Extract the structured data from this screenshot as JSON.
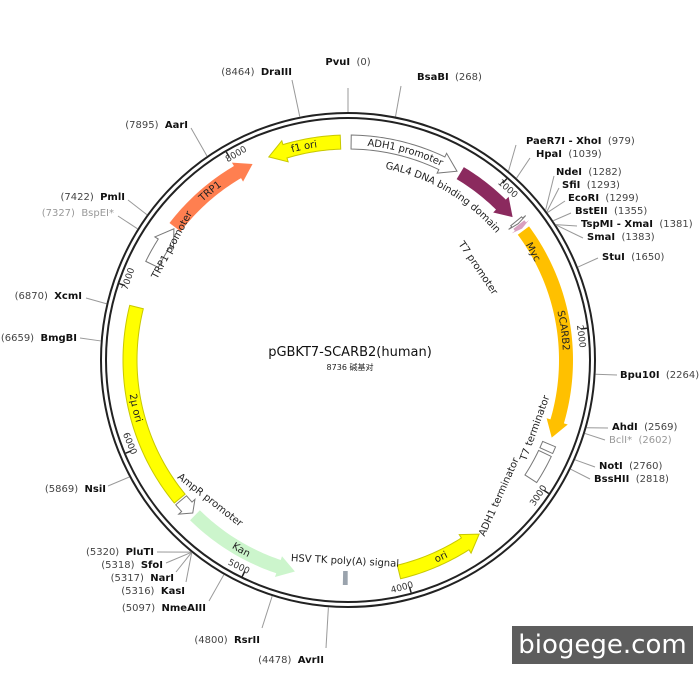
{
  "plasmid": {
    "name": "pGBKT7-SCARB2(human)",
    "length_label": "8736 碱基对",
    "length": 8736
  },
  "ticks": [
    1000,
    2000,
    3000,
    4000,
    5000,
    6000,
    7000,
    8000
  ],
  "features": [
    {
      "label": "ADH1 promoter",
      "start": 20,
      "end": 728,
      "direction": "forward",
      "color": "#ffffff",
      "outline": true
    },
    {
      "label": "GAL4 DNA binding domain",
      "start": 752,
      "end": 1190,
      "direction": "forward",
      "color": "#8b2a5e"
    },
    {
      "label": "T7 promoter",
      "start": 1225,
      "end": 1245,
      "direction": "forward",
      "color": "#ffffff",
      "outline": true
    },
    {
      "label": "Myc",
      "start": 1252,
      "end": 1285,
      "direction": "forward",
      "color": "#d9a0c0"
    },
    {
      "label": "SCARB2",
      "start": 1300,
      "end": 2690,
      "direction": "forward",
      "color": "#ffc000"
    },
    {
      "label": "T7 terminator",
      "start": 2735,
      "end": 2780,
      "direction": "none",
      "color": "#ffffff",
      "outline": true
    },
    {
      "label": "ADH1 terminator",
      "start": 2800,
      "end": 2985,
      "direction": "none",
      "color": "#ffffff",
      "outline": true
    },
    {
      "label": "ori",
      "start": 3470,
      "end": 4040,
      "direction": "reverse",
      "color": "#ffff00"
    },
    {
      "label": "HSV TK poly(A) signal",
      "start": 4370,
      "end": 4400,
      "direction": "none",
      "color": "#9aa3ad"
    },
    {
      "label": "Kan",
      "start": 4710,
      "end": 5450,
      "direction": "reverse",
      "color": "#ccf5cc"
    },
    {
      "label": "AmpR promoter",
      "start": 5470,
      "end": 5580,
      "direction": "reverse",
      "color": "#ffffff",
      "outline": true
    },
    {
      "label": "2μ ori",
      "start": 5594,
      "end": 6893,
      "direction": "none",
      "color": "#ffff00"
    },
    {
      "label": "TRP1 promoter",
      "start": 7183,
      "end": 7450,
      "direction": "forward",
      "color": "#ffffff",
      "outline": true
    },
    {
      "label": "TRP1",
      "start": 7462,
      "end": 8106,
      "direction": "forward",
      "color": "#ff7f50"
    },
    {
      "label": "f1 ori",
      "start": 8219,
      "end": 8688,
      "direction": "reverse",
      "color": "#ffff00"
    }
  ],
  "sites": [
    {
      "name": "PvuI",
      "position": "(0)"
    },
    {
      "name": "BsaBI",
      "position": "(268)"
    },
    {
      "name": "PaeR7I - XhoI",
      "position": "(979)"
    },
    {
      "name": "HpaI",
      "position": "(1039)"
    },
    {
      "name": "NdeI",
      "position": "(1282)"
    },
    {
      "name": "SfiI",
      "position": "(1293)"
    },
    {
      "name": "EcoRI",
      "position": "(1299)"
    },
    {
      "name": "BstEII",
      "position": "(1355)"
    },
    {
      "name": "TspMI - XmaI",
      "position": "(1381)"
    },
    {
      "name": "SmaI",
      "position": "(1383)"
    },
    {
      "name": "StuI",
      "position": "(1650)"
    },
    {
      "name": "Bpu10I",
      "position": "(2264)"
    },
    {
      "name": "AhdI",
      "position": "(2569)"
    },
    {
      "name": "BclI*",
      "position": "(2602)",
      "grey": true
    },
    {
      "name": "NotI",
      "position": "(2760)"
    },
    {
      "name": "BssHII",
      "position": "(2818)"
    },
    {
      "name": "AvrII",
      "position": "(4478)"
    },
    {
      "name": "RsrII",
      "position": "(4800)"
    },
    {
      "name": "NmeAIII",
      "position": "(5097)"
    },
    {
      "name": "KasI",
      "position": "(5316)"
    },
    {
      "name": "NarI",
      "position": "(5317)"
    },
    {
      "name": "SfoI",
      "position": "(5318)"
    },
    {
      "name": "PluTI",
      "position": "(5320)"
    },
    {
      "name": "NsiI",
      "position": "(5869)"
    },
    {
      "name": "BmgBI",
      "position": "(6659)"
    },
    {
      "name": "XcmI",
      "position": "(6870)"
    },
    {
      "name": "BspEI*",
      "position": "(7327)",
      "grey": true
    },
    {
      "name": "PmlI",
      "position": "(7422)"
    },
    {
      "name": "AarI",
      "position": "(7895)"
    },
    {
      "name": "DraIII",
      "position": "(8464)"
    }
  ],
  "watermark": "biogege.com"
}
